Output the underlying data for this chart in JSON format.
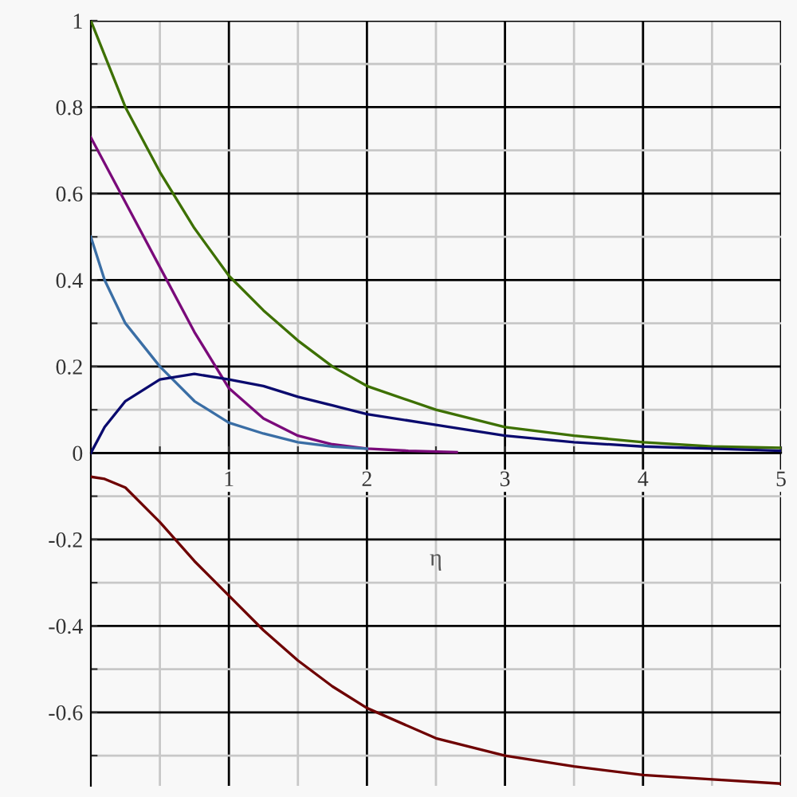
{
  "chart_data": {
    "type": "line",
    "xlabel": "η",
    "xlim": [
      0,
      5
    ],
    "ylim": [
      -0.77,
      1
    ],
    "xticks": [
      {
        "value": 0.5,
        "label": null
      },
      1,
      {
        "value": 1.5,
        "label": null
      },
      2,
      {
        "value": 2.5,
        "label": null
      },
      3,
      {
        "value": 3.5,
        "label": null
      },
      4,
      {
        "value": 4.5,
        "label": null
      },
      5
    ],
    "yticks": [
      {
        "value": -0.7,
        "label": null
      },
      -0.6,
      {
        "value": -0.5,
        "label": null
      },
      -0.4,
      {
        "value": -0.3,
        "label": null
      },
      -0.2,
      {
        "value": -0.1,
        "label": null
      },
      0,
      {
        "value": 0.1,
        "label": null
      },
      0.2,
      {
        "value": 0.3,
        "label": null
      },
      0.4,
      {
        "value": 0.5,
        "label": null
      },
      0.6,
      {
        "value": 0.7,
        "label": null
      },
      0.8,
      {
        "value": 0.9,
        "label": null
      },
      1
    ],
    "grid": true,
    "marker": "none",
    "line_style": "solid",
    "series": [
      {
        "color": "#3d7000",
        "x": [
          0,
          0.25,
          0.5,
          0.75,
          1,
          1.25,
          1.5,
          1.75,
          2,
          2.5,
          3,
          3.5,
          4,
          4.5,
          5
        ],
        "values": [
          1,
          0.8,
          0.65,
          0.52,
          0.41,
          0.33,
          0.26,
          0.2,
          0.155,
          0.1,
          0.06,
          0.04,
          0.025,
          0.015,
          0.012
        ]
      },
      {
        "color": "#7a0a7a",
        "x": [
          0,
          0.25,
          0.5,
          0.75,
          1,
          1.25,
          1.5,
          1.75,
          2,
          2.3,
          2.65
        ],
        "values": [
          0.73,
          0.58,
          0.43,
          0.28,
          0.15,
          0.08,
          0.04,
          0.02,
          0.01,
          0.005,
          0.002
        ]
      },
      {
        "color": "#3a6ea5",
        "x": [
          0,
          0.1,
          0.25,
          0.5,
          0.75,
          1,
          1.25,
          1.5,
          1.75,
          2
        ],
        "values": [
          0.5,
          0.4,
          0.3,
          0.2,
          0.12,
          0.07,
          0.045,
          0.025,
          0.015,
          0.01
        ]
      },
      {
        "color": "#0a0a6e",
        "x": [
          0,
          0.1,
          0.25,
          0.5,
          0.75,
          1,
          1.25,
          1.5,
          1.75,
          2,
          2.5,
          3,
          3.5,
          4,
          4.5,
          5
        ],
        "values": [
          0,
          0.06,
          0.12,
          0.17,
          0.183,
          0.17,
          0.155,
          0.13,
          0.11,
          0.09,
          0.065,
          0.04,
          0.025,
          0.015,
          0.01,
          0.005
        ]
      },
      {
        "color": "#6e0000",
        "x": [
          0,
          0.1,
          0.25,
          0.5,
          0.75,
          1,
          1.25,
          1.5,
          1.75,
          2,
          2.5,
          3,
          3.5,
          4,
          4.5,
          5
        ],
        "values": [
          -0.055,
          -0.06,
          -0.08,
          -0.16,
          -0.25,
          -0.33,
          -0.41,
          -0.48,
          -0.54,
          -0.59,
          -0.66,
          -0.7,
          -0.725,
          -0.745,
          -0.755,
          -0.765
        ]
      }
    ]
  }
}
